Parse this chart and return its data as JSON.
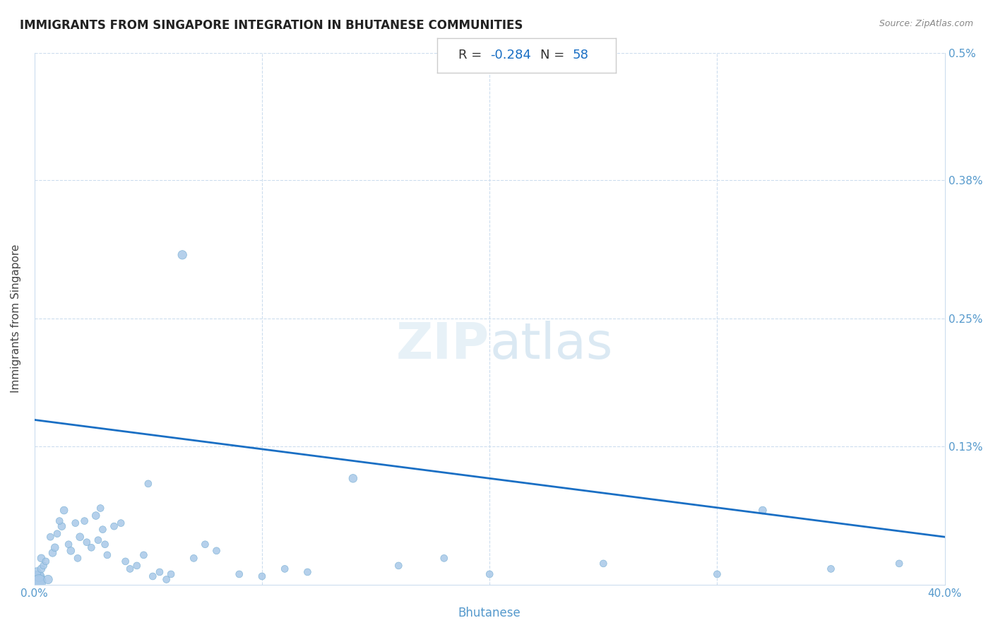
{
  "title": "IMMIGRANTS FROM SINGAPORE INTEGRATION IN BHUTANESE COMMUNITIES",
  "source": "Source: ZipAtlas.com",
  "xlabel": "Bhutanese",
  "ylabel": "Immigrants from Singapore",
  "xlim": [
    0.0,
    0.4
  ],
  "ylim": [
    0.0,
    0.5
  ],
  "xticks": [
    0.0,
    0.1,
    0.2,
    0.3,
    0.4
  ],
  "xticklabels": [
    "0.0%",
    "",
    "",
    "",
    "40.0%"
  ],
  "yticks": [
    0.0,
    0.13,
    0.25,
    0.38,
    0.5
  ],
  "yticklabels": [
    "",
    "0.13%",
    "0.25%",
    "0.38%",
    "0.5%"
  ],
  "R": -0.284,
  "N": 58,
  "scatter_color": "#a8c8e8",
  "scatter_edge_color": "#7ab0d4",
  "line_color": "#1a6fc4",
  "watermark": "ZIPatlas",
  "background_color": "#ffffff",
  "title_color": "#222222",
  "axis_color": "#5599cc",
  "points": [
    [
      0.001,
      0.005
    ],
    [
      0.002,
      0.008
    ],
    [
      0.001,
      0.012
    ],
    [
      0.003,
      0.015
    ],
    [
      0.002,
      0.003
    ],
    [
      0.004,
      0.018
    ],
    [
      0.003,
      0.025
    ],
    [
      0.005,
      0.022
    ],
    [
      0.006,
      0.005
    ],
    [
      0.008,
      0.03
    ],
    [
      0.007,
      0.045
    ],
    [
      0.009,
      0.035
    ],
    [
      0.01,
      0.048
    ],
    [
      0.012,
      0.055
    ],
    [
      0.011,
      0.06
    ],
    [
      0.013,
      0.07
    ],
    [
      0.015,
      0.038
    ],
    [
      0.016,
      0.032
    ],
    [
      0.018,
      0.058
    ],
    [
      0.019,
      0.025
    ],
    [
      0.02,
      0.045
    ],
    [
      0.022,
      0.06
    ],
    [
      0.023,
      0.04
    ],
    [
      0.025,
      0.035
    ],
    [
      0.027,
      0.065
    ],
    [
      0.028,
      0.042
    ],
    [
      0.029,
      0.072
    ],
    [
      0.03,
      0.052
    ],
    [
      0.031,
      0.038
    ],
    [
      0.032,
      0.028
    ],
    [
      0.035,
      0.055
    ],
    [
      0.038,
      0.058
    ],
    [
      0.04,
      0.022
    ],
    [
      0.042,
      0.015
    ],
    [
      0.045,
      0.018
    ],
    [
      0.048,
      0.028
    ],
    [
      0.05,
      0.095
    ],
    [
      0.052,
      0.008
    ],
    [
      0.055,
      0.012
    ],
    [
      0.058,
      0.005
    ],
    [
      0.06,
      0.01
    ],
    [
      0.065,
      0.31
    ],
    [
      0.07,
      0.025
    ],
    [
      0.075,
      0.038
    ],
    [
      0.08,
      0.032
    ],
    [
      0.09,
      0.01
    ],
    [
      0.1,
      0.008
    ],
    [
      0.11,
      0.015
    ],
    [
      0.12,
      0.012
    ],
    [
      0.14,
      0.1
    ],
    [
      0.16,
      0.018
    ],
    [
      0.18,
      0.025
    ],
    [
      0.2,
      0.01
    ],
    [
      0.25,
      0.02
    ],
    [
      0.3,
      0.01
    ],
    [
      0.32,
      0.07
    ],
    [
      0.35,
      0.015
    ],
    [
      0.38,
      0.02
    ]
  ],
  "point_sizes": [
    300,
    120,
    80,
    60,
    200,
    50,
    60,
    50,
    80,
    60,
    50,
    60,
    50,
    60,
    50,
    60,
    50,
    60,
    50,
    50,
    60,
    50,
    50,
    50,
    60,
    50,
    50,
    50,
    50,
    50,
    50,
    50,
    50,
    50,
    50,
    50,
    50,
    50,
    50,
    50,
    50,
    80,
    50,
    50,
    50,
    50,
    50,
    50,
    50,
    70,
    50,
    50,
    50,
    50,
    50,
    60,
    50,
    50
  ]
}
